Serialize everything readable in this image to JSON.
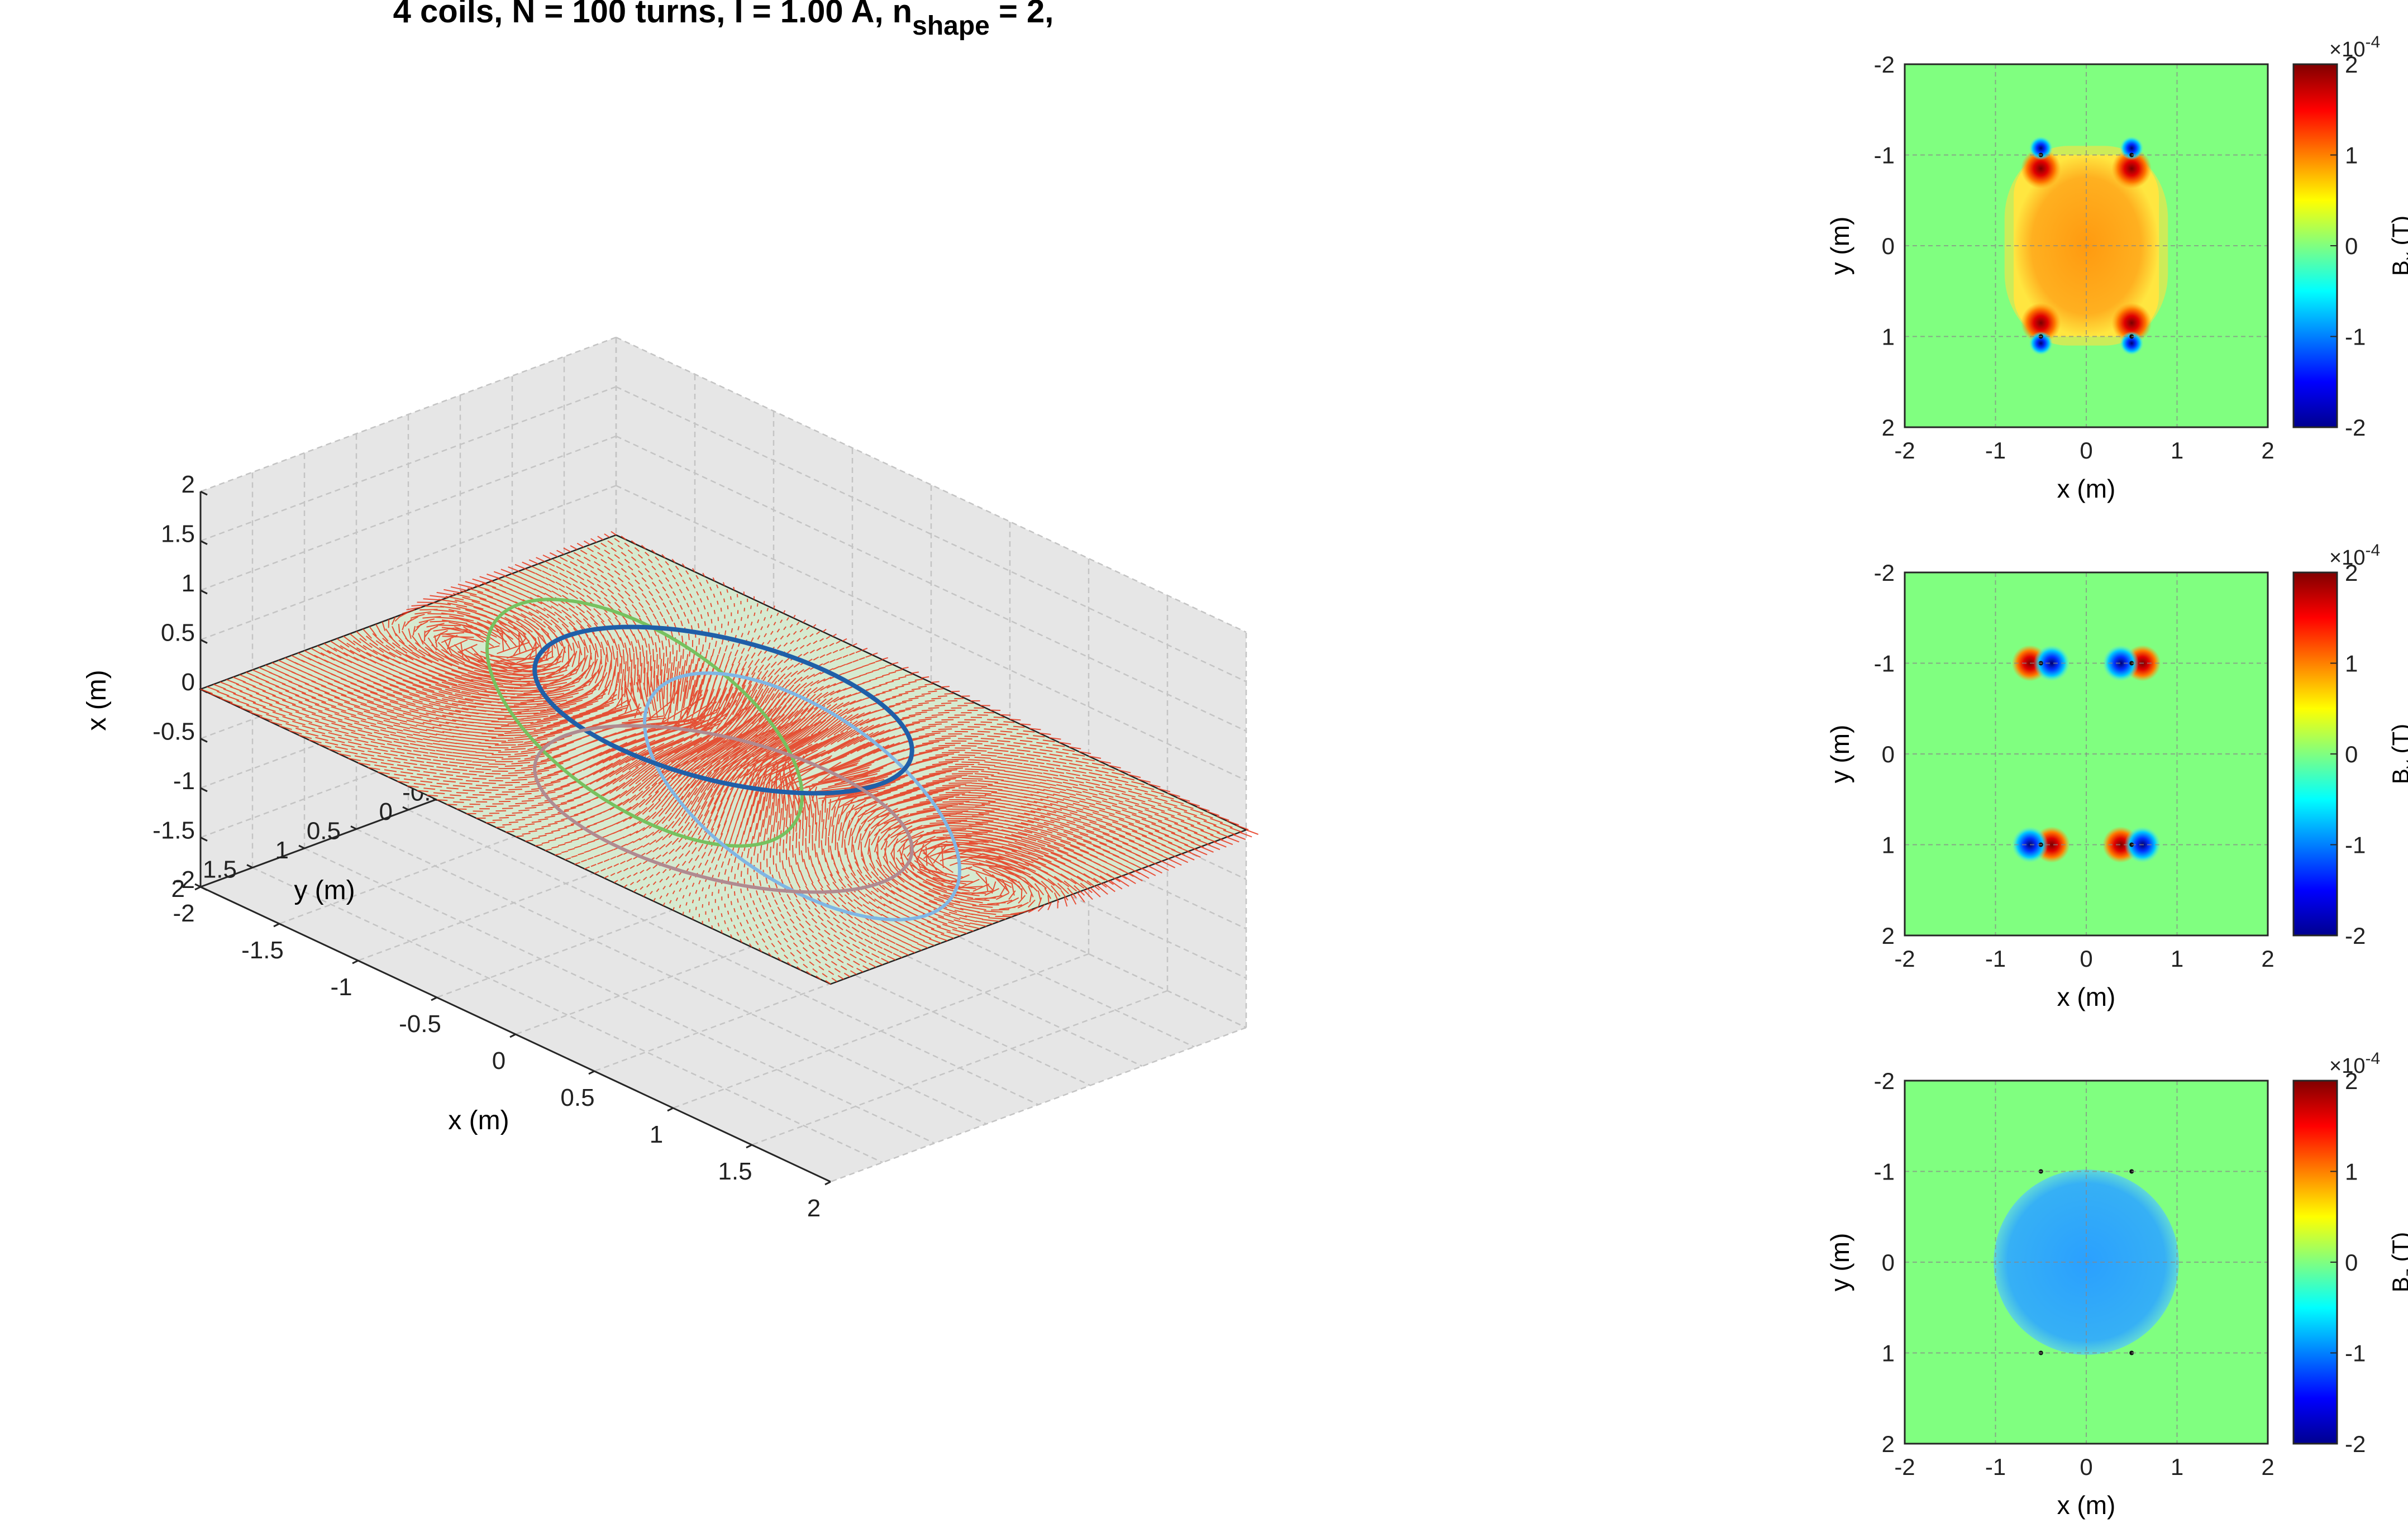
{
  "figure": {
    "title_prefix": "4 coils, N = 100 turns, I = 1.00 A, n",
    "title_subscript": "shape",
    "title_suffix": " = 2,"
  },
  "colors": {
    "pane": "#e6e6e6",
    "plane": "#d6ead0",
    "field_arrows": "#e8361b",
    "coil_green": "#76c15f",
    "coil_lightblue": "#7fb6e4",
    "coil_darkblue": "#1f5fa8",
    "coil_mauve": "#b08a90",
    "colormap": [
      "#00008f",
      "#0000ff",
      "#0080ff",
      "#00ffff",
      "#80ff80",
      "#ffff00",
      "#ff8000",
      "#ff0000",
      "#800000"
    ]
  },
  "chart_data": [
    {
      "type": "quiver3d",
      "xlabel": "x (m)",
      "ylabel": "y (m)",
      "zlabel": "x (m)",
      "x_ticks": [
        "-2",
        "-1.5",
        "-1",
        "-0.5",
        "0",
        "0.5",
        "1",
        "1.5",
        "2"
      ],
      "y_ticks": [
        "-2",
        "-1.5",
        "-1",
        "-0.5",
        "0",
        "0.5",
        "1",
        "1.5",
        "2"
      ],
      "z_ticks": [
        "-2",
        "-1.5",
        "-1",
        "-0.5",
        "0",
        "0.5",
        "1",
        "1.5",
        "2"
      ],
      "xlim": [
        -2,
        2
      ],
      "ylim": [
        -2,
        2
      ],
      "zlim": [
        -2,
        2
      ],
      "grid": true,
      "coils": [
        {
          "color": "coil_green",
          "center": [
            -0.5,
            0,
            0
          ],
          "normal": "y",
          "radius": 1
        },
        {
          "color": "coil_lightblue",
          "center": [
            0.5,
            0,
            0
          ],
          "normal": "y",
          "radius": 1
        },
        {
          "color": "coil_darkblue",
          "center": [
            0,
            0,
            0.5
          ],
          "normal": "z",
          "radius": 1
        },
        {
          "color": "coil_mauve",
          "center": [
            0,
            0,
            -0.5
          ],
          "normal": "z",
          "radius": 1
        }
      ]
    },
    {
      "type": "heatmap",
      "component": "x",
      "xlabel": "x (m)",
      "ylabel": "y (m)",
      "colorbar_label_base": "B",
      "colorbar_label_sub": "x",
      "colorbar_label_unit": " (T)",
      "colorbar_exponent": "×10",
      "colorbar_exponent_power": "-4",
      "x_ticks": [
        "-2",
        "-1",
        "0",
        "1",
        "2"
      ],
      "y_ticks": [
        "-2",
        "-1",
        "0",
        "1",
        "2"
      ],
      "colorbar_ticks": [
        "2",
        "1",
        "0",
        "-1",
        "-2"
      ],
      "xlim": [
        -2,
        2
      ],
      "ylim": [
        -2,
        2
      ],
      "clim": [
        -2,
        2
      ],
      "grid": true
    },
    {
      "type": "heatmap",
      "component": "y",
      "xlabel": "x (m)",
      "ylabel": "y (m)",
      "colorbar_label_base": "B",
      "colorbar_label_sub": "y",
      "colorbar_label_unit": " (T)",
      "colorbar_exponent": "×10",
      "colorbar_exponent_power": "-4",
      "x_ticks": [
        "-2",
        "-1",
        "0",
        "1",
        "2"
      ],
      "y_ticks": [
        "-2",
        "-1",
        "0",
        "1",
        "2"
      ],
      "colorbar_ticks": [
        "2",
        "1",
        "0",
        "-1",
        "-2"
      ],
      "xlim": [
        -2,
        2
      ],
      "ylim": [
        -2,
        2
      ],
      "clim": [
        -2,
        2
      ],
      "grid": true
    },
    {
      "type": "heatmap",
      "component": "z",
      "xlabel": "x (m)",
      "ylabel": "y (m)",
      "colorbar_label_base": "B",
      "colorbar_label_sub": "z",
      "colorbar_label_unit": " (T)",
      "colorbar_exponent": "×10",
      "colorbar_exponent_power": "-4",
      "x_ticks": [
        "-2",
        "-1",
        "0",
        "1",
        "2"
      ],
      "y_ticks": [
        "-2",
        "-1",
        "0",
        "1",
        "2"
      ],
      "colorbar_ticks": [
        "2",
        "1",
        "0",
        "-1",
        "-2"
      ],
      "xlim": [
        -2,
        2
      ],
      "ylim": [
        -2,
        2
      ],
      "clim": [
        -2,
        2
      ],
      "grid": true
    }
  ]
}
